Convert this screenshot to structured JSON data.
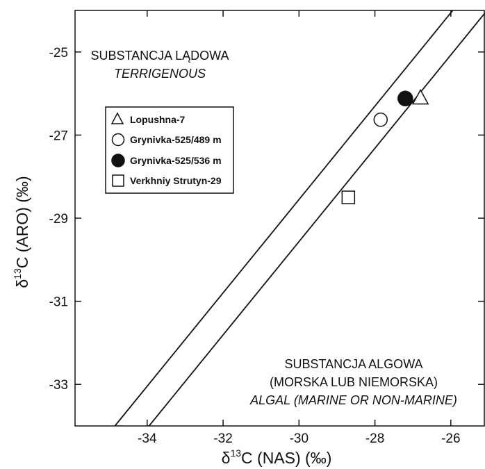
{
  "chart_data": {
    "type": "scatter",
    "xlabel_main": "δ",
    "xlabel_sup": "13",
    "xlabel_rest": "C (NAS) (‰)",
    "ylabel_main": "δ",
    "ylabel_sup": "13",
    "ylabel_rest": "C (ARO) (‰)",
    "xlim": [
      -35.9,
      -25.1
    ],
    "ylim": [
      -34.0,
      -24.0
    ],
    "xticks": [
      -34,
      -32,
      -30,
      -28,
      -26
    ],
    "yticks": [
      -25,
      -27,
      -29,
      -31,
      -33
    ],
    "region_upper": {
      "line1": "SUBSTANCJA LĄDOWA",
      "line2": "TERRIGENOUS"
    },
    "region_lower": {
      "line1": "SUBSTANCJA ALGOWA",
      "line2": "(MORSKA LUB NIEMORSKA)",
      "line3": "ALGAL (MARINE OR NON-MARINE)"
    },
    "boundary_lines": [
      {
        "x1": -34.85,
        "y1": -34.0,
        "x2": -25.95,
        "y2": -24.0
      },
      {
        "x1": -33.95,
        "y1": -34.0,
        "x2": -25.1,
        "y2": -24.06
      }
    ],
    "series": [
      {
        "name": "Lopushna-7",
        "marker": "triangle",
        "x": [
          -26.8
        ],
        "y": [
          -26.1
        ]
      },
      {
        "name": "Grynivka-525/489 m",
        "marker": "circle-open",
        "x": [
          -27.85
        ],
        "y": [
          -26.63
        ]
      },
      {
        "name": "Grynivka-525/536 m",
        "marker": "circle-filled",
        "x": [
          -27.2
        ],
        "y": [
          -26.12
        ]
      },
      {
        "name": "Verkhniy Strutyn-29",
        "marker": "square",
        "x": [
          -28.7
        ],
        "y": [
          -28.5
        ]
      }
    ]
  }
}
